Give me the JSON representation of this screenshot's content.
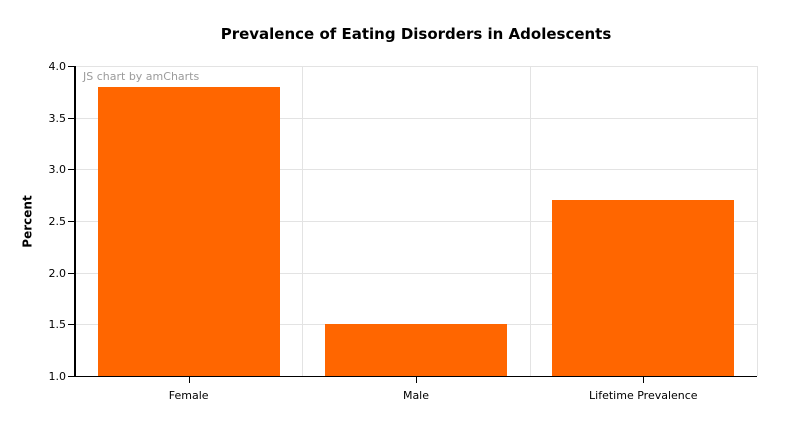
{
  "chart_data": {
    "type": "bar",
    "title": "Prevalence of Eating Disorders in Adolescents",
    "categories": [
      "Female",
      "Male",
      "Lifetime Prevalence"
    ],
    "values": [
      3.8,
      1.5,
      2.7
    ],
    "xlabel": "",
    "ylabel": "Percent",
    "ylim": [
      1.0,
      4.0
    ],
    "ytick_interval": 0.5,
    "ytick_labels": [
      "4.0",
      "3.5",
      "3.0",
      "2.5",
      "2.0",
      "1.5",
      "1.0"
    ],
    "grid": true,
    "legend": false,
    "bar_color": "#FF6600",
    "grid_color": "#E3E3E3",
    "axis_color": "#000000",
    "text_color": "#000000",
    "watermark": "JS chart by amCharts",
    "watermark_color": "#9B9B9B",
    "background": "#FFFFFF"
  }
}
